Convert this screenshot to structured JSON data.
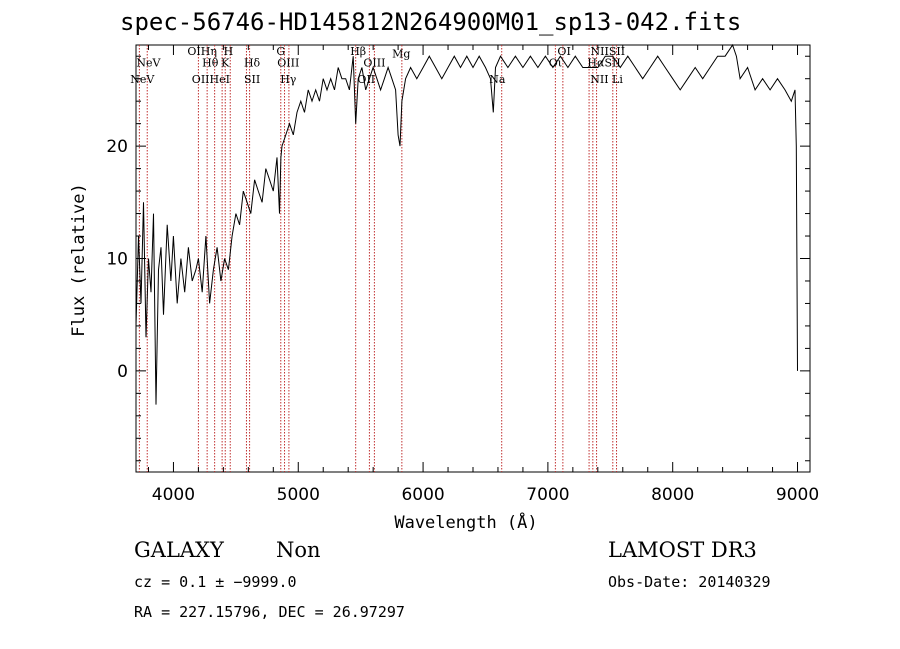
{
  "chart_data": {
    "type": "line",
    "title": "spec-56746-HD145812N264900M01_sp13-042.fits",
    "xlabel": "Wavelength (Å)",
    "ylabel": "Flux (relative)",
    "xlim": [
      3700,
      9100
    ],
    "ylim": [
      -9,
      29
    ],
    "xticks": [
      4000,
      5000,
      6000,
      7000,
      8000,
      9000
    ],
    "yticks": [
      0,
      10,
      20
    ],
    "series": [
      {
        "name": "flux",
        "x": [
          3700,
          3720,
          3740,
          3760,
          3780,
          3800,
          3820,
          3840,
          3860,
          3880,
          3900,
          3920,
          3950,
          3980,
          4000,
          4030,
          4060,
          4090,
          4120,
          4150,
          4180,
          4200,
          4230,
          4260,
          4290,
          4320,
          4350,
          4380,
          4410,
          4440,
          4470,
          4500,
          4530,
          4560,
          4590,
          4620,
          4650,
          4680,
          4710,
          4740,
          4770,
          4800,
          4830,
          4850,
          4861,
          4870,
          4900,
          4930,
          4960,
          4990,
          5020,
          5050,
          5080,
          5110,
          5140,
          5170,
          5200,
          5230,
          5260,
          5290,
          5320,
          5350,
          5380,
          5410,
          5440,
          5460,
          5480,
          5510,
          5540,
          5570,
          5600,
          5630,
          5660,
          5690,
          5720,
          5750,
          5780,
          5800,
          5815,
          5830,
          5860,
          5900,
          5950,
          6000,
          6050,
          6100,
          6150,
          6200,
          6250,
          6300,
          6350,
          6400,
          6450,
          6500,
          6540,
          6563,
          6580,
          6620,
          6680,
          6740,
          6800,
          6860,
          6920,
          6980,
          7040,
          7100,
          7160,
          7220,
          7280,
          7340,
          7400,
          7460,
          7520,
          7580,
          7640,
          7700,
          7760,
          7820,
          7880,
          7940,
          8000,
          8060,
          8120,
          8180,
          8240,
          8300,
          8360,
          8420,
          8480,
          8510,
          8540,
          8600,
          8660,
          8720,
          8780,
          8840,
          8900,
          8950,
          8980,
          8990,
          9000
        ],
        "values": [
          4,
          12,
          6,
          15,
          3,
          10,
          7,
          14,
          -3,
          9,
          11,
          5,
          13,
          8,
          12,
          6,
          10,
          7,
          11,
          8,
          9,
          10,
          7,
          12,
          6,
          9,
          11,
          8,
          10,
          9,
          12,
          14,
          13,
          16,
          15,
          14,
          17,
          16,
          15,
          18,
          17,
          16,
          19,
          14,
          19,
          20,
          21,
          22,
          21,
          23,
          24,
          23,
          25,
          24,
          25,
          24,
          26,
          25,
          26,
          25,
          27,
          26,
          26,
          25,
          28,
          22,
          26,
          27,
          25,
          26,
          27,
          26,
          25,
          26,
          27,
          26,
          25,
          21,
          20,
          24,
          26,
          27,
          26,
          27,
          28,
          27,
          26,
          27,
          28,
          27,
          28,
          27,
          28,
          27,
          26,
          23,
          27,
          28,
          27,
          28,
          27,
          28,
          27,
          28,
          27,
          28,
          27,
          28,
          27,
          27,
          27,
          28,
          28,
          27,
          28,
          27,
          26,
          27,
          28,
          27,
          26,
          25,
          26,
          27,
          26,
          27,
          28,
          28,
          29,
          28,
          26,
          27,
          25,
          26,
          25,
          26,
          25,
          24,
          25,
          20,
          0
        ]
      }
    ],
    "lines": [
      {
        "label": "NeV",
        "wavelength": 3727
      },
      {
        "label": "NeV",
        "wavelength": 3790
      },
      {
        "label": "OII",
        "wavelength": 4200
      },
      {
        "label": "Hθ",
        "wavelength": 4270
      },
      {
        "label": "Hη",
        "wavelength": 4330
      },
      {
        "label": "HeI",
        "wavelength": 4390
      },
      {
        "label": "K",
        "wavelength": 4415
      },
      {
        "label": "H",
        "wavelength": 4455
      },
      {
        "label": "Hδ",
        "wavelength": 4585
      },
      {
        "label": "SII",
        "wavelength": 4610
      },
      {
        "label": "G",
        "wavelength": 4860
      },
      {
        "label": "Hγ",
        "wavelength": 4890
      },
      {
        "label": "OIII",
        "wavelength": 4925
      },
      {
        "label": "Hβ",
        "wavelength": 5460
      },
      {
        "label": "OIII",
        "wavelength": 5570
      },
      {
        "label": "OIII",
        "wavelength": 5610
      },
      {
        "label": "Mg",
        "wavelength": 5830
      },
      {
        "label": "Na",
        "wavelength": 6630
      },
      {
        "label": "OI",
        "wavelength": 7060
      },
      {
        "label": "OI",
        "wavelength": 7120
      },
      {
        "label": "NII",
        "wavelength": 7330
      },
      {
        "label": "Hα",
        "wavelength": 7360
      },
      {
        "label": "NII",
        "wavelength": 7390
      },
      {
        "label": "SII",
        "wavelength": 7520
      },
      {
        "label": "SII",
        "wavelength": 7550
      }
    ],
    "line_labels": [
      {
        "text": "NeV",
        "wavelength": 3800,
        "flux": 27.1
      },
      {
        "text": "NeV",
        "wavelength": 3750,
        "flux": 25.6
      },
      {
        "text": "OIHη",
        "wavelength": 4230,
        "flux": 28.1
      },
      {
        "text": "H",
        "wavelength": 4440,
        "flux": 28.1
      },
      {
        "text": "Hθ",
        "wavelength": 4295,
        "flux": 27.1
      },
      {
        "text": "K",
        "wavelength": 4415,
        "flux": 27.1
      },
      {
        "text": "Hδ",
        "wavelength": 4630,
        "flux": 27.1
      },
      {
        "text": "OIIHeI",
        "wavelength": 4300,
        "flux": 25.6
      },
      {
        "text": "SII",
        "wavelength": 4630,
        "flux": 25.6
      },
      {
        "text": "G",
        "wavelength": 4860,
        "flux": 28.1
      },
      {
        "text": "OIII",
        "wavelength": 4920,
        "flux": 27.1
      },
      {
        "text": "Hγ",
        "wavelength": 4920,
        "flux": 25.6
      },
      {
        "text": "Hβ",
        "wavelength": 5480,
        "flux": 28.1
      },
      {
        "text": "OIII",
        "wavelength": 5610,
        "flux": 27.1
      },
      {
        "text": "OII",
        "wavelength": 5545,
        "flux": 25.6
      },
      {
        "text": "Mg",
        "wavelength": 5825,
        "flux": 27.9
      },
      {
        "text": "Na",
        "wavelength": 6595,
        "flux": 25.6
      },
      {
        "text": "OI",
        "wavelength": 7130,
        "flux": 28.1
      },
      {
        "text": "Oι",
        "wavelength": 7060,
        "flux": 27.1
      },
      {
        "text": "NIISII",
        "wavelength": 7480,
        "flux": 28.1
      },
      {
        "text": "HαSII",
        "wavelength": 7450,
        "flux": 27.1
      },
      {
        "text": "NII Li",
        "wavelength": 7470,
        "flux": 25.6
      }
    ]
  },
  "info": {
    "class": "GALAXY",
    "subclass": "Non",
    "cz_line": "cz = 0.1 ± −9999.0",
    "coords_line": "RA = 227.15796, DEC =  26.97297",
    "survey": "LAMOST DR3",
    "obs_date": "Obs-Date: 20140329"
  },
  "colors": {
    "spectrum": "#000000",
    "lines": "#c03030",
    "axis": "#000000",
    "background": "#ffffff"
  }
}
